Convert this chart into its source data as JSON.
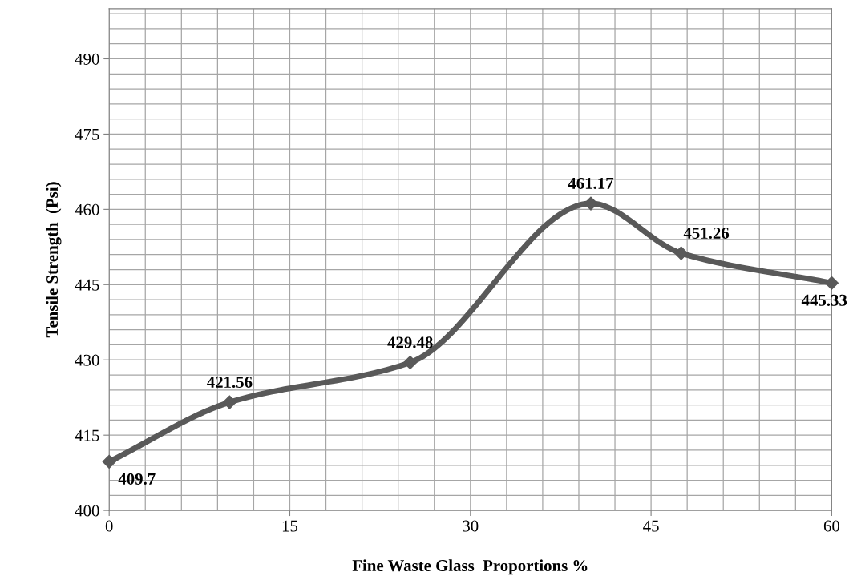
{
  "chart_data": {
    "type": "line",
    "xlabel": "Fine Waste Glass  Proportions %",
    "ylabel": "Tensile Strength  (Psi)",
    "x": [
      0,
      10,
      25,
      40,
      47.5,
      60
    ],
    "series": [
      {
        "color": "#595959",
        "values": [
          409.7,
          421.56,
          429.48,
          461.17,
          451.26,
          445.33
        ]
      }
    ],
    "xlim": [
      0,
      60
    ],
    "xticks": [
      0,
      15,
      30,
      45,
      60
    ],
    "ylim": [
      400,
      500
    ],
    "yticks": [
      400,
      415,
      430,
      445,
      460,
      475,
      490
    ],
    "grid": true,
    "marker": "diamond",
    "line_style": "solid",
    "data_labels": true
  }
}
